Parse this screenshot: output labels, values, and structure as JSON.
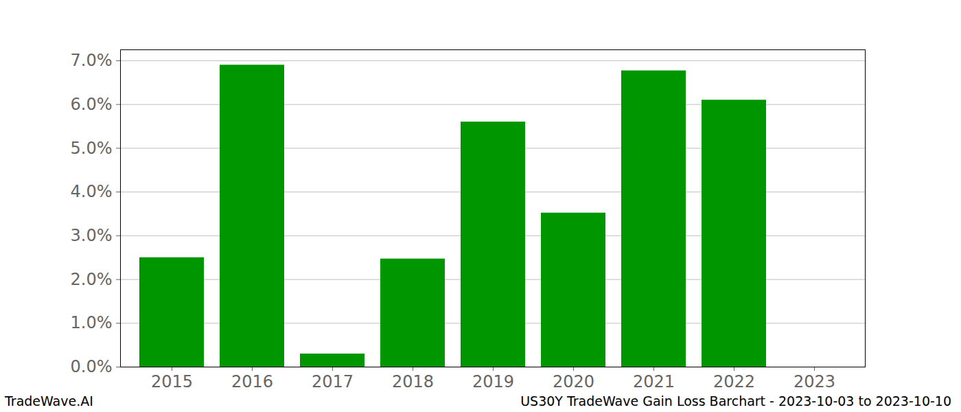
{
  "chart_data": {
    "type": "bar",
    "title": "US30Y TradeWave Gain Loss Barchart - 2023-10-03 to 2023-10-10",
    "source": "TradeWave.AI",
    "categories": [
      "2015",
      "2016",
      "2017",
      "2018",
      "2019",
      "2020",
      "2021",
      "2022",
      "2023"
    ],
    "values": [
      2.5,
      6.9,
      0.3,
      2.47,
      5.6,
      3.52,
      6.77,
      6.1,
      0
    ],
    "color": "#009600",
    "ylim": [
      0,
      7.25
    ],
    "yticks": [
      {
        "value": 0,
        "label": "0.0%"
      },
      {
        "value": 1,
        "label": "1.0%"
      },
      {
        "value": 2,
        "label": "2.0%"
      },
      {
        "value": 3,
        "label": "3.0%"
      },
      {
        "value": 4,
        "label": "4.0%"
      },
      {
        "value": 5,
        "label": "5.0%"
      },
      {
        "value": 6,
        "label": "6.0%"
      },
      {
        "value": 7,
        "label": "7.0%"
      }
    ],
    "grid": true
  }
}
